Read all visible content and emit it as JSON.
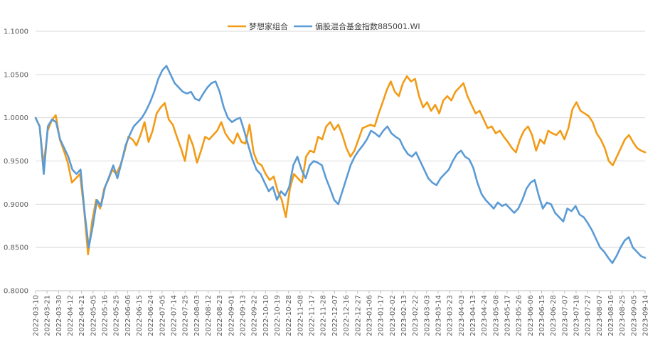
{
  "chart_data": {
    "type": "line",
    "title": "",
    "xlabel": "",
    "ylabel": "",
    "ylim": [
      0.8,
      1.1
    ],
    "y_ticks": [
      "0.8000",
      "0.8500",
      "0.9000",
      "0.9500",
      "1.0000",
      "1.0500",
      "1.1000"
    ],
    "grid": "horizontal",
    "legend_position": "top-center",
    "x_tick_labels": [
      "2022-03-10",
      "2022-03-21",
      "2022-03-30",
      "2022-04-12",
      "2022-04-21",
      "2022-05-05",
      "2022-05-16",
      "2022-05-25",
      "2022-06-06",
      "2022-06-15",
      "2022-06-24",
      "2022-07-05",
      "2022-07-14",
      "2022-07-25",
      "2022-08-03",
      "2022-08-12",
      "2022-08-23",
      "2022-09-01",
      "2022-09-13",
      "2022-09-22",
      "2022-10-10",
      "2022-10-19",
      "2022-10-28",
      "2022-11-08",
      "2022-11-17",
      "2022-11-28",
      "2022-12-07",
      "2022-12-16",
      "2022-12-27",
      "2023-01-06",
      "2023-01-17",
      "2023-02-02",
      "2023-02-13",
      "2023-02-22",
      "2023-03-03",
      "2023-03-14",
      "2023-03-23",
      "2023-04-03",
      "2023-04-13",
      "2023-04-24",
      "2023-05-08",
      "2023-05-17",
      "2023-05-26",
      "2023-06-06",
      "2023-06-15",
      "2023-06-28",
      "2023-07-07",
      "2023-07-18",
      "2023-07-27",
      "2023-08-07",
      "2023-08-16",
      "2023-08-25",
      "2023-09-05",
      "2023-09-14"
    ],
    "series": [
      {
        "name": "梦想家组合",
        "color": "#F29B16",
        "values": [
          1.0,
          0.99,
          0.945,
          0.985,
          0.997,
          1.003,
          0.975,
          0.962,
          0.948,
          0.925,
          0.93,
          0.935,
          0.895,
          0.842,
          0.88,
          0.905,
          0.895,
          0.918,
          0.928,
          0.94,
          0.935,
          0.945,
          0.96,
          0.978,
          0.975,
          0.968,
          0.98,
          0.995,
          0.972,
          0.985,
          1.005,
          1.012,
          1.017,
          0.998,
          0.992,
          0.978,
          0.965,
          0.95,
          0.98,
          0.968,
          0.948,
          0.962,
          0.978,
          0.975,
          0.98,
          0.985,
          0.995,
          0.982,
          0.975,
          0.97,
          0.982,
          0.972,
          0.97,
          0.992,
          0.96,
          0.948,
          0.945,
          0.935,
          0.928,
          0.932,
          0.915,
          0.905,
          0.885,
          0.918,
          0.935,
          0.93,
          0.925,
          0.955,
          0.962,
          0.96,
          0.978,
          0.975,
          0.99,
          0.995,
          0.986,
          0.992,
          0.98,
          0.965,
          0.955,
          0.962,
          0.975,
          0.988,
          0.99,
          0.992,
          0.99,
          1.005,
          1.018,
          1.032,
          1.042,
          1.03,
          1.025,
          1.04,
          1.048,
          1.042,
          1.045,
          1.025,
          1.012,
          1.018,
          1.008,
          1.015,
          1.005,
          1.02,
          1.025,
          1.02,
          1.03,
          1.035,
          1.04,
          1.025,
          1.015,
          1.005,
          1.008,
          0.998,
          0.988,
          0.99,
          0.982,
          0.985,
          0.978,
          0.972,
          0.965,
          0.96,
          0.975,
          0.985,
          0.99,
          0.98,
          0.962,
          0.975,
          0.97,
          0.985,
          0.982,
          0.98,
          0.985,
          0.975,
          0.988,
          1.01,
          1.018,
          1.008,
          1.005,
          1.002,
          0.995,
          0.982,
          0.975,
          0.965,
          0.95,
          0.945,
          0.955,
          0.965,
          0.975,
          0.98,
          0.972,
          0.965,
          0.962,
          0.96
        ]
      },
      {
        "name": "偏股混合基金指数885001.WI",
        "color": "#5B9BD5",
        "values": [
          1.0,
          0.99,
          0.935,
          0.99,
          0.998,
          0.995,
          0.975,
          0.965,
          0.955,
          0.94,
          0.935,
          0.94,
          0.89,
          0.85,
          0.875,
          0.905,
          0.898,
          0.92,
          0.932,
          0.945,
          0.93,
          0.948,
          0.968,
          0.98,
          0.99,
          0.995,
          1.0,
          1.008,
          1.018,
          1.03,
          1.045,
          1.055,
          1.06,
          1.05,
          1.04,
          1.035,
          1.03,
          1.028,
          1.03,
          1.022,
          1.02,
          1.028,
          1.035,
          1.04,
          1.042,
          1.03,
          1.012,
          1.0,
          0.995,
          0.998,
          1.0,
          0.985,
          0.968,
          0.952,
          0.94,
          0.935,
          0.925,
          0.915,
          0.92,
          0.905,
          0.915,
          0.91,
          0.92,
          0.945,
          0.955,
          0.94,
          0.93,
          0.945,
          0.95,
          0.948,
          0.945,
          0.93,
          0.918,
          0.905,
          0.9,
          0.915,
          0.93,
          0.945,
          0.955,
          0.962,
          0.968,
          0.975,
          0.985,
          0.982,
          0.978,
          0.985,
          0.99,
          0.982,
          0.978,
          0.975,
          0.965,
          0.958,
          0.955,
          0.96,
          0.95,
          0.94,
          0.93,
          0.925,
          0.922,
          0.93,
          0.935,
          0.94,
          0.95,
          0.958,
          0.962,
          0.955,
          0.952,
          0.942,
          0.925,
          0.912,
          0.905,
          0.9,
          0.895,
          0.902,
          0.898,
          0.9,
          0.895,
          0.89,
          0.895,
          0.905,
          0.918,
          0.925,
          0.928,
          0.91,
          0.895,
          0.902,
          0.9,
          0.89,
          0.885,
          0.88,
          0.895,
          0.892,
          0.898,
          0.888,
          0.885,
          0.878,
          0.87,
          0.86,
          0.85,
          0.845,
          0.838,
          0.832,
          0.84,
          0.85,
          0.858,
          0.862,
          0.85,
          0.845,
          0.84,
          0.838
        ]
      }
    ]
  }
}
